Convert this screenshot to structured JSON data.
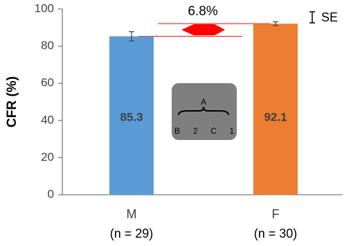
{
  "chart_data": {
    "type": "bar",
    "ylabel": "CFR (%)",
    "categories": [
      "M",
      "F"
    ],
    "sublabels": [
      "(n = 29)",
      "(n = 30)"
    ],
    "values": [
      85.3,
      92.1
    ],
    "errors": [
      2.5,
      1.0
    ],
    "colors": [
      "#5b9bd5",
      "#ed7d31"
    ],
    "ylim": [
      0,
      100
    ],
    "yticks": [
      0,
      20,
      40,
      60,
      80,
      100
    ],
    "annotation": "6.8%",
    "legend_label": "SE",
    "inset": {
      "top": "A",
      "bottom": [
        "B",
        "2",
        "C",
        "1"
      ]
    }
  }
}
